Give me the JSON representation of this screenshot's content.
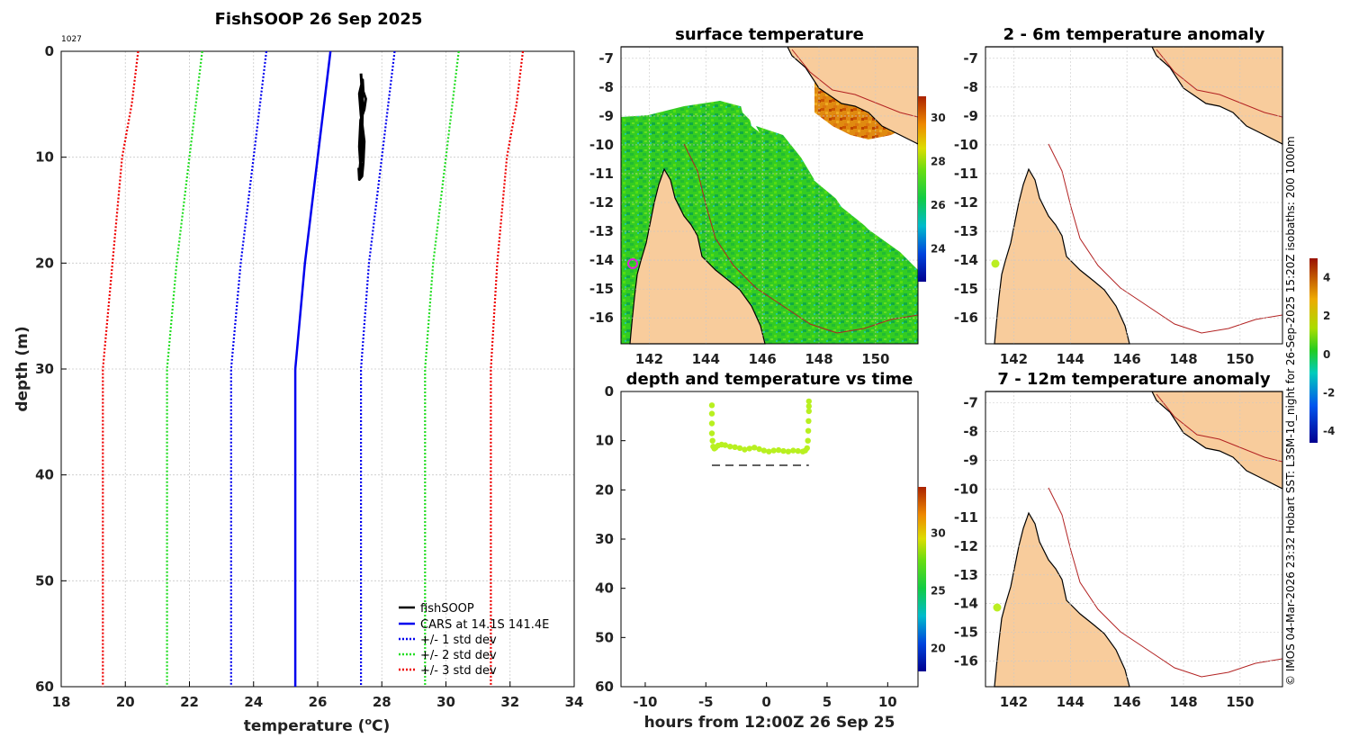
{
  "figure_title": "FishSOOP 26 Sep 2025",
  "corner_id": "1027",
  "credit": "© IMOS 04-Mar-2026 23:32 Hobart SST: L3SM-1d_night for 26-Sep-2025 15:20Z isobaths: 200  1000m",
  "colors": {
    "fishsoop": "#000000",
    "cars": "#0000ee",
    "std1": "#0000ee",
    "std2": "#22dd22",
    "std3": "#ee0000",
    "land": "#f8cc9c",
    "coast": "#000000",
    "isobath": "#b22222",
    "grid": "#c8c8c8",
    "marker_ring": "#dd22dd",
    "marker_fill": "#bbee22",
    "series_point": "#b8f020"
  },
  "chart_data": [
    {
      "id": "profile",
      "type": "line",
      "title": "",
      "xlabel": "temperature",
      "xlabel_unit_base": "C",
      "xlabel_unit_sup": "o",
      "ylabel": "depth (m)",
      "xlim": [
        18,
        34
      ],
      "ylim": [
        0,
        60
      ],
      "y_reversed": true,
      "xticks": [
        "18",
        "20",
        "22",
        "24",
        "26",
        "28",
        "30",
        "32",
        "34"
      ],
      "yticks": [
        "0",
        "10",
        "20",
        "30",
        "40",
        "50",
        "60"
      ],
      "grid": true,
      "legend_position": "bottom-right",
      "legend": [
        "fishSOOP",
        "CARS at 14.1S 141.4E",
        "+/- 1 std dev",
        "+/- 2 std dev",
        "+/- 3 std dev"
      ],
      "depth": [
        0,
        5,
        10,
        20,
        30,
        60
      ],
      "series": [
        {
          "name": "CARS mean",
          "style": "solid",
          "values": [
            26.4,
            26.2,
            26.0,
            25.6,
            25.3,
            25.3
          ]
        },
        {
          "name": "+1 std",
          "style": "dotted",
          "values": [
            28.4,
            28.2,
            28.0,
            27.6,
            27.35,
            27.35
          ]
        },
        {
          "name": "-1 std",
          "style": "dotted",
          "values": [
            24.4,
            24.2,
            24.0,
            23.6,
            23.3,
            23.3
          ]
        },
        {
          "name": "+2 std",
          "style": "dotted",
          "values": [
            30.4,
            30.2,
            30.0,
            29.6,
            29.35,
            29.35
          ]
        },
        {
          "name": "-2 std",
          "style": "dotted",
          "values": [
            22.4,
            22.2,
            22.0,
            21.6,
            21.3,
            21.3
          ]
        },
        {
          "name": "+3 std",
          "style": "dotted",
          "values": [
            32.4,
            32.2,
            31.9,
            31.6,
            31.4,
            31.4
          ]
        },
        {
          "name": "-3 std",
          "style": "dotted",
          "values": [
            20.4,
            20.2,
            19.9,
            19.6,
            19.3,
            19.3
          ]
        }
      ],
      "fishsoop": {
        "temp": [
          27.35,
          27.4,
          27.38,
          27.35,
          27.3,
          27.32,
          27.36,
          27.3,
          27.34,
          27.45,
          27.5,
          27.42,
          27.4,
          27.3,
          27.35,
          27.45,
          27.42,
          27.38,
          27.3,
          27.28
        ],
        "depth": [
          2.1,
          5.0,
          8.0,
          10.0,
          11.5,
          12.0,
          11.8,
          9.0,
          6.5,
          5.5,
          4.5,
          3.8,
          2.7,
          4.0,
          6.0,
          8.5,
          10.5,
          11.8,
          12.1,
          11.0
        ]
      }
    },
    {
      "id": "timeseries",
      "type": "scatter",
      "title": "depth and temperature vs time",
      "xlabel": "hours from 12:00Z 26 Sep 25",
      "ylabel": "",
      "xlim": [
        -12,
        12.5
      ],
      "ylim": [
        0,
        60
      ],
      "y_reversed": true,
      "xticks": [
        "-10",
        "-5",
        "0",
        "5",
        "10"
      ],
      "yticks": [
        "0",
        "10",
        "20",
        "30",
        "40",
        "50",
        "60"
      ],
      "grid": false,
      "colorbar": {
        "range": [
          18,
          34
        ],
        "ticks": [
          "20",
          "25",
          "30"
        ]
      },
      "bottom_line_depth": 15,
      "bottom_line_x": [
        -4.5,
        3.5
      ],
      "points": {
        "x": [
          -4.5,
          -4.5,
          -4.5,
          -4.5,
          -4.45,
          -4.4,
          -4.3,
          -4.2,
          -4.0,
          -3.7,
          -3.4,
          -3.0,
          -2.6,
          -2.2,
          -1.8,
          -1.4,
          -1.0,
          -0.6,
          -0.2,
          0.2,
          0.6,
          1.0,
          1.4,
          1.8,
          2.2,
          2.6,
          3.0,
          3.2,
          3.35,
          3.42,
          3.45,
          3.47,
          3.5,
          3.5,
          3.5
        ],
        "depth": [
          2.8,
          4.5,
          6.5,
          8.5,
          10.0,
          11.2,
          11.6,
          11.4,
          11.0,
          10.8,
          10.9,
          11.2,
          11.3,
          11.5,
          11.8,
          11.6,
          11.4,
          11.7,
          12.0,
          12.2,
          12.0,
          11.9,
          12.1,
          12.2,
          12.0,
          12.1,
          12.2,
          12.0,
          11.5,
          10.0,
          8.0,
          6.0,
          4.0,
          3.0,
          2.0
        ]
      }
    },
    {
      "id": "surface_temperature",
      "type": "heatmap",
      "title": "surface temperature",
      "xlim": [
        141,
        151.5
      ],
      "ylim": [
        -16.9,
        -6.6
      ],
      "xticks": [
        "142",
        "144",
        "146",
        "148",
        "150"
      ],
      "yticks": [
        "-7",
        "-8",
        "-9",
        "-10",
        "-11",
        "-12",
        "-13",
        "-14",
        "-15",
        "-16"
      ],
      "colorbar": {
        "range": [
          22.5,
          31
        ],
        "ticks": [
          "24",
          "26",
          "28",
          "30"
        ]
      },
      "station": {
        "lon": 141.4,
        "lat": -14.1
      }
    },
    {
      "id": "anomaly_2_6m",
      "type": "heatmap",
      "title": "2 - 6m temperature anomaly",
      "xlim": [
        141,
        151.5
      ],
      "ylim": [
        -16.9,
        -6.6
      ],
      "xticks": [
        "142",
        "144",
        "146",
        "148",
        "150"
      ],
      "yticks": [
        "-7",
        "-8",
        "-9",
        "-10",
        "-11",
        "-12",
        "-13",
        "-14",
        "-15",
        "-16"
      ],
      "colorbar": {
        "range": [
          -4.6,
          5
        ],
        "ticks": [
          "-4",
          "-2",
          "0",
          "2",
          "4"
        ]
      },
      "station": {
        "lon": 141.35,
        "lat": -14.1
      }
    },
    {
      "id": "anomaly_7_12m",
      "type": "heatmap",
      "title": "7 - 12m temperature anomaly",
      "xlim": [
        141,
        151.5
      ],
      "ylim": [
        -16.9,
        -6.6
      ],
      "xticks": [
        "142",
        "144",
        "146",
        "148",
        "150"
      ],
      "yticks": [
        "-7",
        "-8",
        "-9",
        "-10",
        "-11",
        "-12",
        "-13",
        "-14",
        "-15",
        "-16"
      ],
      "station": {
        "lon": 141.35,
        "lat": -14.1
      }
    }
  ]
}
